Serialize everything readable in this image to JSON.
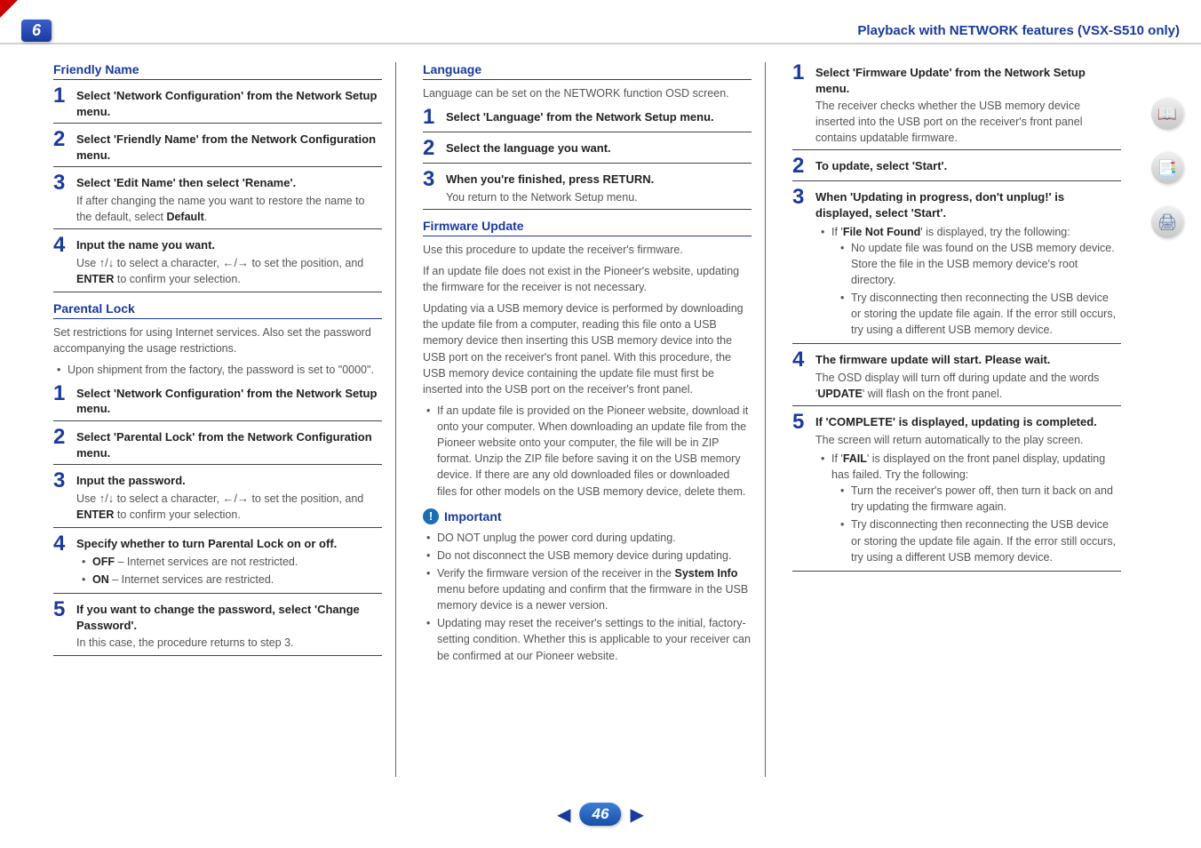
{
  "header": {
    "chapter": "6",
    "title": "Playback with NETWORK features (VSX-S510 only)"
  },
  "col1": {
    "friendly_name": {
      "heading": "Friendly Name",
      "steps": [
        {
          "n": "1",
          "title": "Select 'Network Configuration' from the Network Setup menu."
        },
        {
          "n": "2",
          "title": "Select 'Friendly Name' from the Network Configuration menu."
        },
        {
          "n": "3",
          "title": "Select 'Edit Name' then select 'Rename'.",
          "desc_pre": "If after changing the name you want to restore the name to the default, select ",
          "desc_bold": "Default",
          "desc_post": "."
        },
        {
          "n": "4",
          "title": "Input the name you want.",
          "desc_html": "Use ↑/↓ to select a character, ←/→ to set the position, and <b>ENTER</b> to confirm your selection."
        }
      ]
    },
    "parental_lock": {
      "heading": "Parental Lock",
      "intro": "Set restrictions for using Internet services. Also set the password accompanying the usage restrictions.",
      "bullet": "Upon shipment from the factory, the password is set to \"0000\".",
      "steps": [
        {
          "n": "1",
          "title": "Select 'Network Configuration' from the Network Setup menu."
        },
        {
          "n": "2",
          "title": "Select 'Parental Lock' from the Network Configuration menu."
        },
        {
          "n": "3",
          "title": "Input the password.",
          "desc_html": "Use ↑/↓ to select a character, ←/→ to set the position, and <b>ENTER</b> to confirm your selection."
        },
        {
          "n": "4",
          "title": "Specify whether to turn Parental Lock on or off.",
          "sub": [
            {
              "b": "OFF",
              "t": " – Internet services are not restricted."
            },
            {
              "b": "ON",
              "t": " – Internet services are restricted."
            }
          ]
        },
        {
          "n": "5",
          "title": "If you want to change the password, select 'Change Password'.",
          "desc": "In this case, the procedure returns to step 3."
        }
      ]
    }
  },
  "col2": {
    "language": {
      "heading": "Language",
      "intro": "Language can be set on the NETWORK function OSD screen.",
      "steps": [
        {
          "n": "1",
          "title": "Select 'Language' from the Network Setup menu."
        },
        {
          "n": "2",
          "title": "Select the language you want."
        },
        {
          "n": "3",
          "title_pre": "When you're finished, press ",
          "title_bold": "RETURN.",
          "desc": "You return to the Network Setup menu."
        }
      ]
    },
    "firmware_update": {
      "heading": "Firmware Update",
      "p1": "Use this procedure to update the receiver's firmware.",
      "p2": "If an update file does not exist in the Pioneer's website, updating the firmware for the receiver is not necessary.",
      "p3": "Updating via a USB memory device is performed by downloading the update file from a computer, reading this file onto a USB memory device then inserting this USB memory device into the USB port on the receiver's front panel. With this procedure, the USB memory device containing the update file must first be inserted into the USB port on the receiver's front panel.",
      "bullet": "If an update file is provided on the Pioneer website, download it onto your computer. When downloading an update file from the Pioneer website onto your computer, the file will be in ZIP format. Unzip the ZIP file before saving it on the USB memory device. If there are any old downloaded files or downloaded files for other models on the USB memory device, delete them.",
      "important_h": "Important",
      "important": [
        "DO NOT unplug the power cord during updating.",
        "Do not disconnect the USB memory device during updating.",
        {
          "pre": "Verify the firmware version of the receiver in the ",
          "b": "System Info",
          "post": " menu before updating and confirm that the firmware in the USB memory device is a newer version."
        },
        "Updating may reset the receiver's settings to the initial, factory-setting condition. Whether this is applicable to your receiver can be confirmed at our Pioneer website."
      ]
    }
  },
  "col3": {
    "steps": [
      {
        "n": "1",
        "title": "Select 'Firmware Update' from the Network Setup menu.",
        "desc": "The receiver checks whether the USB memory device inserted into the USB port on the receiver's front panel contains updatable firmware."
      },
      {
        "n": "2",
        "title": "To update, select 'Start'."
      },
      {
        "n": "3",
        "title": "When 'Updating in progress, don't unplug!' is displayed, select 'Start'.",
        "sub3": {
          "intro_pre": "If '",
          "intro_b": "File Not Found",
          "intro_post": "' is displayed, try the following:",
          "dashes": [
            "No update file was found on the USB memory device. Store the file in the USB memory device's root directory.",
            "Try disconnecting then reconnecting the USB device or storing the update file again. If the error still occurs, try using a different USB memory device."
          ]
        }
      },
      {
        "n": "4",
        "title": "The firmware update will start. Please wait.",
        "desc_html": "The OSD display will turn off during update and the words '<b>UPDATE</b>' will flash on the front panel."
      },
      {
        "n": "5",
        "title": "If 'COMPLETE' is displayed, updating is completed.",
        "desc": "The screen will return automatically to the play screen.",
        "bullet5": {
          "intro_pre": "If '",
          "intro_b": "FAIL",
          "intro_post": "' is displayed on the front panel display, updating has failed. Try the following:",
          "dashes": [
            "Turn the receiver's power off, then turn it back on and try updating the firmware again.",
            "Try disconnecting then reconnecting the USB device or storing the update file again. If the error still occurs, try using a different USB memory device."
          ]
        }
      }
    ]
  },
  "pager": {
    "page": "46"
  },
  "side": {
    "icons": [
      "📖",
      "📑",
      "🖨"
    ]
  }
}
